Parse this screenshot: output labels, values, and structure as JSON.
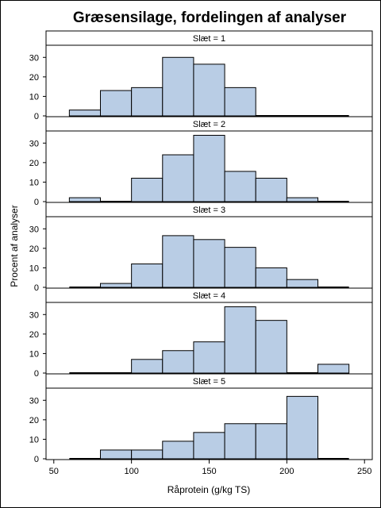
{
  "chart_data": {
    "type": "histogram",
    "title": "Græsensilage, fordelingen af analyser",
    "xlabel": "Råprotein (g/kg TS)",
    "ylabel": "Procent af analyser",
    "xlim": [
      45,
      255
    ],
    "xticks": [
      50,
      100,
      150,
      200,
      250
    ],
    "ylim": [
      0,
      35
    ],
    "yticks": [
      0,
      10,
      20,
      30
    ],
    "bin_width": 20,
    "panels": [
      {
        "label": "Slæt = 1",
        "bins": [
          [
            60,
            3
          ],
          [
            80,
            13
          ],
          [
            100,
            14.5
          ],
          [
            120,
            30
          ],
          [
            140,
            26.5
          ],
          [
            160,
            14.5
          ]
        ]
      },
      {
        "label": "Slæt = 2",
        "bins": [
          [
            60,
            2
          ],
          [
            100,
            12
          ],
          [
            120,
            24
          ],
          [
            140,
            34
          ],
          [
            160,
            15.5
          ],
          [
            180,
            12
          ],
          [
            200,
            2
          ]
        ]
      },
      {
        "label": "Slæt = 3",
        "bins": [
          [
            80,
            2
          ],
          [
            100,
            12
          ],
          [
            120,
            26.5
          ],
          [
            140,
            24.5
          ],
          [
            160,
            20.5
          ],
          [
            180,
            10
          ],
          [
            200,
            4
          ]
        ]
      },
      {
        "label": "Slæt = 4",
        "bins": [
          [
            100,
            7
          ],
          [
            120,
            11.5
          ],
          [
            140,
            16
          ],
          [
            160,
            34
          ],
          [
            180,
            27
          ],
          [
            220,
            4.5
          ]
        ]
      },
      {
        "label": "Slæt = 5",
        "bins": [
          [
            80,
            4.5
          ],
          [
            100,
            4.5
          ],
          [
            120,
            9
          ],
          [
            140,
            13.5
          ],
          [
            160,
            18
          ],
          [
            180,
            18
          ],
          [
            200,
            32
          ]
        ]
      }
    ]
  }
}
